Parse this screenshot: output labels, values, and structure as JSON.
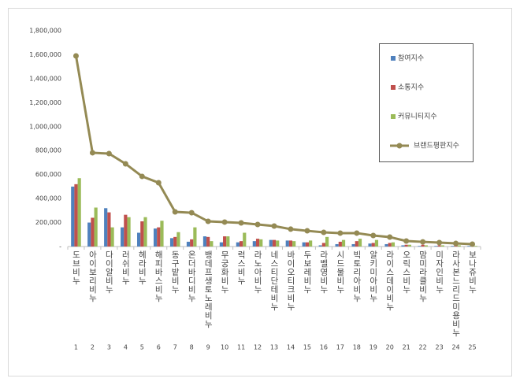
{
  "chart_data": {
    "type": "combo",
    "categories": [
      "도브비누",
      "아이보리비누",
      "다이알비누",
      "러쉬비누",
      "헤라비누",
      "해피바스비누",
      "동구밭비누",
      "온더바디비누",
      "뱅데프생토노레비누",
      "무궁화비누",
      "럭스비누",
      "라노아비누",
      "네스티단테비누",
      "바이오티크비누",
      "두보레비누",
      "라벨영비누",
      "시드물비누",
      "빅토리아비누",
      "알키미아비누",
      "라이스데이비누",
      "오릭스비누",
      "맘미라클비누",
      "미자인비누",
      "라사본느리드미용비누",
      "보나쥬비누"
    ],
    "ranks": [
      1,
      2,
      3,
      4,
      5,
      6,
      7,
      8,
      9,
      10,
      11,
      12,
      13,
      14,
      15,
      16,
      17,
      18,
      19,
      20,
      21,
      22,
      23,
      24,
      25
    ],
    "series": [
      {
        "name": "참여지수",
        "type": "bar",
        "color": "#4f81bd",
        "values": [
          500000,
          200000,
          320000,
          160000,
          115000,
          150000,
          70000,
          40000,
          85000,
          35000,
          35000,
          45000,
          55000,
          50000,
          35000,
          10000,
          20000,
          20000,
          25000,
          20000,
          10000,
          5000,
          5000,
          5000,
          5000
        ]
      },
      {
        "name": "소통지수",
        "type": "bar",
        "color": "#c0504d",
        "values": [
          520000,
          240000,
          285000,
          265000,
          210000,
          160000,
          80000,
          60000,
          80000,
          85000,
          45000,
          65000,
          55000,
          50000,
          35000,
          30000,
          40000,
          45000,
          30000,
          30000,
          15000,
          15000,
          10000,
          10000,
          5000
        ]
      },
      {
        "name": "커뮤니티지수",
        "type": "bar",
        "color": "#9bbb59",
        "values": [
          570000,
          325000,
          160000,
          245000,
          245000,
          215000,
          120000,
          160000,
          45000,
          85000,
          115000,
          60000,
          50000,
          45000,
          50000,
          80000,
          55000,
          65000,
          55000,
          35000,
          15000,
          10000,
          10000,
          10000,
          5000
        ]
      },
      {
        "name": "브랜드평판지수",
        "type": "line",
        "color": "#948a54",
        "values": [
          1590000,
          782000,
          775000,
          690000,
          585000,
          532000,
          289000,
          282000,
          210000,
          204000,
          197000,
          184000,
          171000,
          145000,
          131000,
          118000,
          112000,
          112000,
          92000,
          79000,
          46000,
          39000,
          33000,
          26000,
          20000
        ]
      }
    ],
    "ylim": [
      0,
      1800000
    ],
    "yticks": [
      {
        "value": 0,
        "label": "-"
      },
      {
        "value": 200000,
        "label": "200,000"
      },
      {
        "value": 400000,
        "label": "400,000"
      },
      {
        "value": 600000,
        "label": "600,000"
      },
      {
        "value": 800000,
        "label": "800,000"
      },
      {
        "value": 1000000,
        "label": "1,000,000"
      },
      {
        "value": 1200000,
        "label": "1,200,000"
      },
      {
        "value": 1400000,
        "label": "1,400,000"
      },
      {
        "value": 1600000,
        "label": "1,600,000"
      },
      {
        "value": 1800000,
        "label": "1,800,000"
      }
    ],
    "grid": false,
    "legend": "right"
  }
}
